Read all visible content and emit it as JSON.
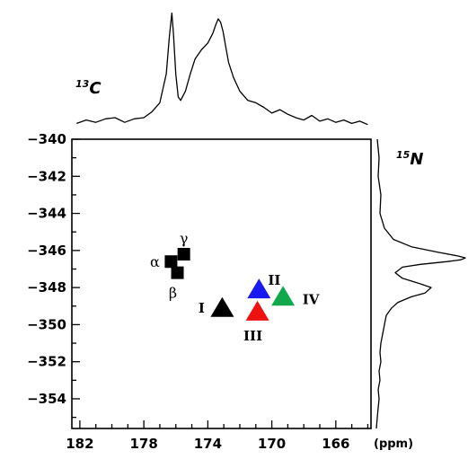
{
  "chart_data": {
    "type": "scatter",
    "xlabel": "(ppm)",
    "ylabel": "",
    "xlim": [
      182.5,
      163.8
    ],
    "ylim": [
      -340,
      -355.6
    ],
    "x_ticks": [
      182,
      178,
      174,
      170,
      166
    ],
    "y_ticks": [
      -340,
      -342,
      -344,
      -346,
      -348,
      -350,
      -352,
      -354
    ],
    "x_minor_step": 1,
    "y_minor_step": 1,
    "top_projection_label": {
      "sup": "13",
      "base": "C"
    },
    "right_projection_label": {
      "sup": "15",
      "base": "N"
    },
    "square_markers": [
      {
        "label": "α",
        "x": 176.3,
        "y": -346.6,
        "color": "#000000"
      },
      {
        "label": "β",
        "x": 175.9,
        "y": -347.2,
        "color": "#000000"
      },
      {
        "label": "γ",
        "x": 175.5,
        "y": -346.2,
        "color": "#000000"
      }
    ],
    "triangle_markers": [
      {
        "label": "I",
        "x": 173.1,
        "y": -349.1,
        "color": "#000000"
      },
      {
        "label": "II",
        "x": 170.8,
        "y": -348.1,
        "color": "#1a1aee"
      },
      {
        "label": "III",
        "x": 170.9,
        "y": -349.3,
        "color": "#ee1111"
      },
      {
        "label": "IV",
        "x": 169.3,
        "y": -348.5,
        "color": "#11a84b"
      }
    ],
    "top_projection": {
      "x": [
        182.2,
        181.6,
        181.0,
        180.4,
        179.8,
        179.2,
        178.6,
        178.0,
        177.5,
        177.0,
        176.6,
        176.4,
        176.25,
        176.15,
        176.0,
        175.85,
        175.7,
        175.4,
        175.1,
        174.8,
        174.4,
        174.0,
        173.7,
        173.5,
        173.35,
        173.2,
        173.05,
        172.9,
        172.7,
        172.4,
        172.0,
        171.5,
        171.0,
        170.5,
        170.0,
        169.5,
        169.0,
        168.5,
        168.0,
        167.5,
        167.0,
        166.5,
        166.0,
        165.5,
        165.0,
        164.5,
        164.0
      ],
      "y": [
        0.02,
        0.05,
        0.03,
        0.06,
        0.07,
        0.03,
        0.06,
        0.07,
        0.12,
        0.2,
        0.45,
        0.78,
        0.98,
        0.8,
        0.45,
        0.25,
        0.22,
        0.3,
        0.45,
        0.58,
        0.66,
        0.72,
        0.8,
        0.88,
        0.93,
        0.9,
        0.82,
        0.7,
        0.55,
        0.42,
        0.3,
        0.22,
        0.2,
        0.16,
        0.11,
        0.14,
        0.1,
        0.07,
        0.05,
        0.09,
        0.04,
        0.06,
        0.03,
        0.05,
        0.02,
        0.04,
        0.01
      ]
    },
    "right_projection": {
      "y": [
        -340.0,
        -341.0,
        -342.0,
        -343.0,
        -344.0,
        -344.8,
        -345.4,
        -345.8,
        -346.1,
        -346.3,
        -346.4,
        -346.5,
        -346.6,
        -346.75,
        -346.9,
        -347.2,
        -347.5,
        -347.8,
        -348.0,
        -348.3,
        -348.5,
        -348.8,
        -349.1,
        -349.5,
        -350.0,
        -350.5,
        -351.0,
        -351.5,
        -352.0,
        -352.5,
        -353.0,
        -353.5,
        -354.0,
        -354.5,
        -355.0,
        -355.6
      ],
      "value": [
        0.02,
        0.04,
        0.03,
        0.06,
        0.05,
        0.1,
        0.2,
        0.4,
        0.7,
        0.92,
        1.0,
        0.95,
        0.8,
        0.5,
        0.3,
        0.22,
        0.3,
        0.5,
        0.62,
        0.55,
        0.4,
        0.25,
        0.18,
        0.12,
        0.1,
        0.08,
        0.06,
        0.05,
        0.06,
        0.04,
        0.05,
        0.03,
        0.04,
        0.03,
        0.02,
        0.01
      ]
    }
  }
}
